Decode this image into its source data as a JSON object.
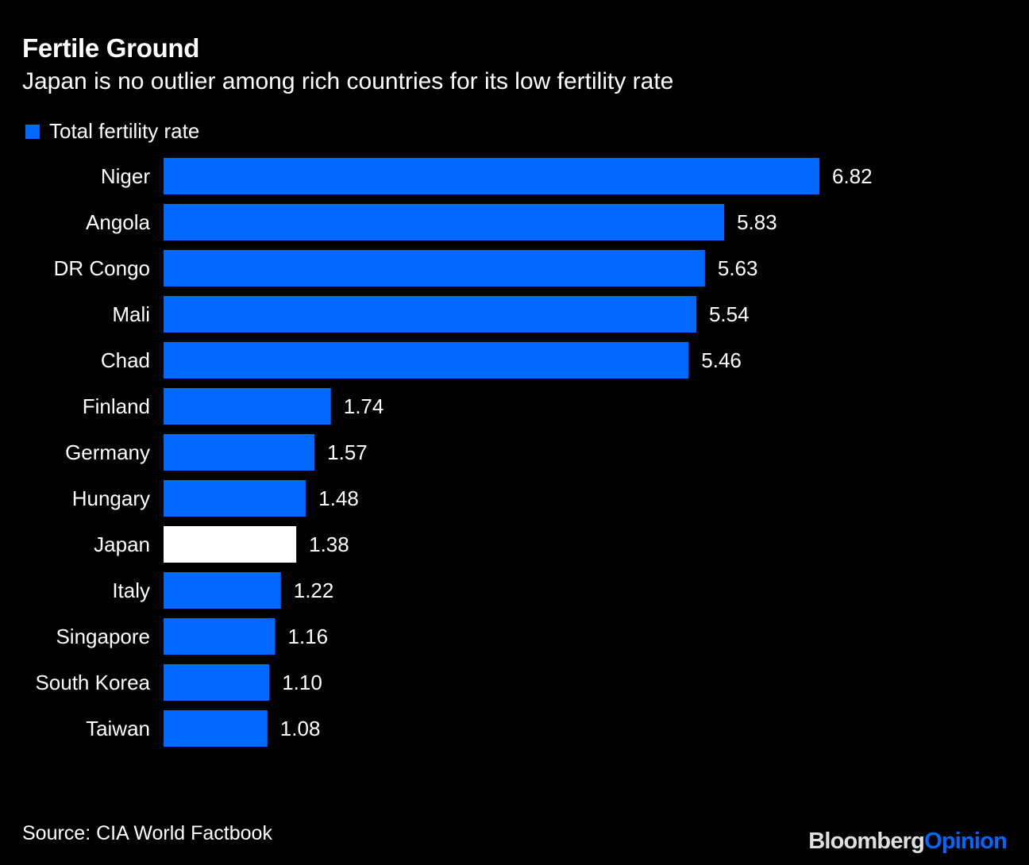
{
  "header": {
    "title": "Fertile Ground",
    "subtitle": "Japan is no outlier among rich countries for its low fertility rate"
  },
  "legend": {
    "label": "Total fertility rate",
    "color": "#0068ff"
  },
  "footer": {
    "source": "Source: CIA World Factbook",
    "brand_part1": "Bloomberg",
    "brand_part2": "Opinion",
    "brand_accent": "#0068ff"
  },
  "chart_data": {
    "type": "bar",
    "orientation": "horizontal",
    "title": "Fertile Ground",
    "subtitle": "Japan is no outlier among rich countries for its low fertility rate",
    "xlabel": "",
    "ylabel": "",
    "xlim": [
      0,
      6.82
    ],
    "grid": false,
    "legend_position": "top-left",
    "categories": [
      "Niger",
      "Angola",
      "DR Congo",
      "Mali",
      "Chad",
      "Finland",
      "Germany",
      "Hungary",
      "Japan",
      "Italy",
      "Singapore",
      "South Korea",
      "Taiwan"
    ],
    "series": [
      {
        "name": "Total fertility rate",
        "values": [
          6.82,
          5.83,
          5.63,
          5.54,
          5.46,
          1.74,
          1.57,
          1.48,
          1.38,
          1.22,
          1.16,
          1.1,
          1.08
        ],
        "labels": [
          "6.82",
          "5.83",
          "5.63",
          "5.54",
          "5.46",
          "1.74",
          "1.57",
          "1.48",
          "1.38",
          "1.22",
          "1.16",
          "1.10",
          "1.08"
        ]
      }
    ],
    "bar_color": "#0068ff",
    "highlight": {
      "category": "Japan",
      "color": "#ffffff"
    },
    "source": "Source: CIA World Factbook"
  }
}
